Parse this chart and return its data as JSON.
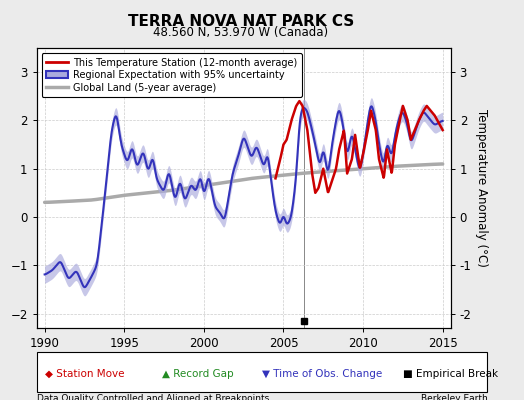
{
  "title": "TERRA NOVA NAT PARK CS",
  "subtitle": "48.560 N, 53.970 W (Canada)",
  "xlabel_bottom": "Data Quality Controlled and Aligned at Breakpoints",
  "xlabel_right": "Berkeley Earth",
  "ylabel": "Temperature Anomaly (°C)",
  "xlim": [
    1989.5,
    2015.5
  ],
  "ylim": [
    -2.3,
    3.5
  ],
  "yticks": [
    -2,
    -1,
    0,
    1,
    2,
    3
  ],
  "xticks": [
    1990,
    1995,
    2000,
    2005,
    2010,
    2015
  ],
  "bg_color": "#ebebeb",
  "plot_bg_color": "#ffffff",
  "regional_color": "#3333bb",
  "regional_band_color": "#aaaadd",
  "station_color": "#cc0000",
  "global_color": "#aaaaaa",
  "empirical_break_x": 2006.3,
  "empirical_break_y": -2.15,
  "station_start_year": 2004.5
}
